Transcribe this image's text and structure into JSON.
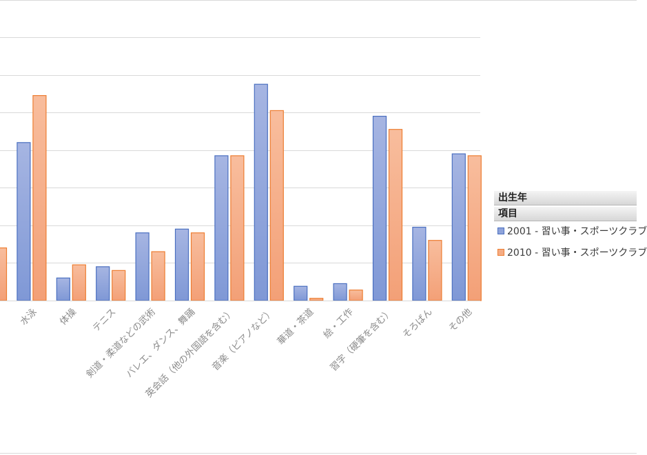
{
  "chart_data": {
    "type": "bar",
    "categories": [
      "",
      "水泳",
      "体操",
      "テニス",
      "剣道・柔道などの武術",
      "バレエ、ダンス、舞踊",
      "英会話（他の外国語を含む）",
      "音楽（ピアノなど）",
      "華道・茶道",
      "絵・工作",
      "習字（硬筆を含む）",
      "そろばん",
      "その他"
    ],
    "series": [
      {
        "name": "2001 - 習い事・スポーツクラブ",
        "values": [
          null,
          42.0,
          6.0,
          9.0,
          18.0,
          19.0,
          38.5,
          57.5,
          3.8,
          4.5,
          49.0,
          19.5,
          39.0
        ]
      },
      {
        "name": "2010 - 習い事・スポーツクラブ",
        "values": [
          14.0,
          54.5,
          9.5,
          8.0,
          13.0,
          18.0,
          38.5,
          50.5,
          0.6,
          2.8,
          45.5,
          16.0,
          38.5
        ]
      }
    ],
    "ylim": [
      0,
      70
    ],
    "grid": true,
    "legend": "right"
  },
  "legend": {
    "field_1": "出生年",
    "field_2": "項目",
    "entries": [
      "2001 - 習い事・スポーツクラブ",
      "2010 - 習い事・スポーツクラブ"
    ]
  },
  "colors": {
    "series_2001_fill": "#8ea3da",
    "series_2001_edge": "#4a6fc0",
    "series_2010_fill": "#f5ac84",
    "series_2010_edge": "#ed7d31",
    "gridline": "#d9d9d9",
    "axis_text": "#8c8c8c"
  }
}
